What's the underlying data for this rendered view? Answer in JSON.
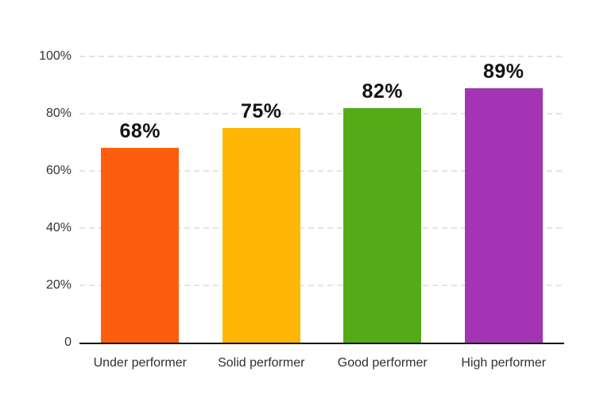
{
  "chart_data": {
    "type": "bar",
    "title": "",
    "xlabel": "",
    "ylabel": "",
    "categories": [
      "Under performer",
      "Solid performer",
      "Good performer",
      "High performer"
    ],
    "values": [
      68,
      75,
      82,
      89
    ],
    "value_labels": [
      "68%",
      "75%",
      "82%",
      "89%"
    ],
    "bar_colors": [
      "#FD5E0D",
      "#FFB705",
      "#53AB18",
      "#A335B5"
    ],
    "y_ticks": [
      {
        "label": "100%",
        "value": 100
      },
      {
        "label": "80%",
        "value": 80
      },
      {
        "label": "60%",
        "value": 60
      },
      {
        "label": "40%",
        "value": 40
      },
      {
        "label": "20%",
        "value": 20
      },
      {
        "label": "0",
        "value": 0
      }
    ],
    "ylim": [
      0,
      100
    ],
    "grid": "horizontal-dashed",
    "legend": "none",
    "colors": {
      "axis_line": "#141414",
      "gridline": "#E3E3E3",
      "value_label": "#121212",
      "tick_label": "#333333",
      "background": "#FFFFFF"
    }
  }
}
